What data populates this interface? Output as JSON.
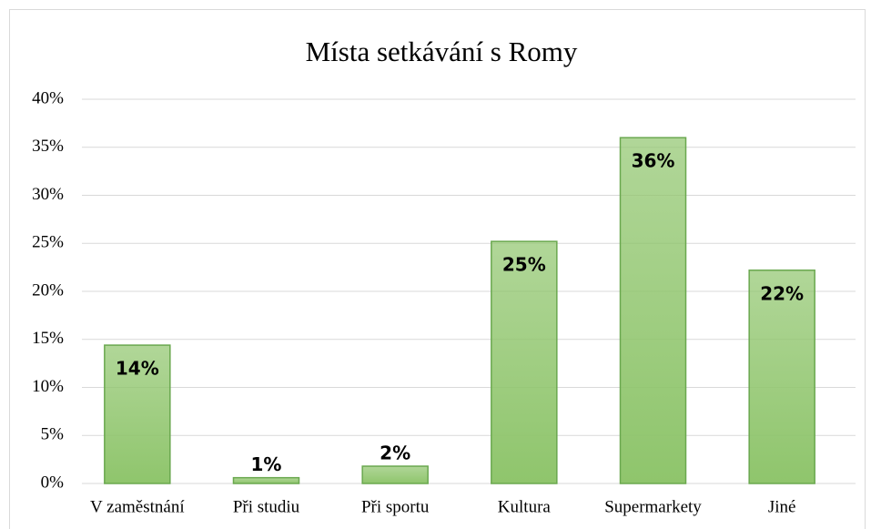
{
  "chart_data": {
    "type": "bar",
    "title": "Místa setkávání s Romy",
    "categories": [
      "V zaměstnání",
      "Při studiu",
      "Při sportu",
      "Kultura",
      "Supermarkety",
      "Jiné"
    ],
    "values": [
      14.4,
      0.6,
      1.8,
      25.2,
      36,
      22.2
    ],
    "value_labels": [
      "14%",
      "1%",
      "2%",
      "25%",
      "36%",
      "22%"
    ],
    "color": "#8fc56c",
    "edge_color": "#6aa84f",
    "ylim": [
      0,
      40
    ],
    "yticks": [
      {
        "value": 0,
        "label": "0%"
      },
      {
        "value": 5,
        "label": "5%"
      },
      {
        "value": 10,
        "label": "10%"
      },
      {
        "value": 15,
        "label": "15%"
      },
      {
        "value": 20,
        "label": "20%"
      },
      {
        "value": 25,
        "label": "25%"
      },
      {
        "value": 30,
        "label": "30%"
      },
      {
        "value": 35,
        "label": "35%"
      },
      {
        "value": 40,
        "label": "40%"
      }
    ],
    "grid": true
  }
}
